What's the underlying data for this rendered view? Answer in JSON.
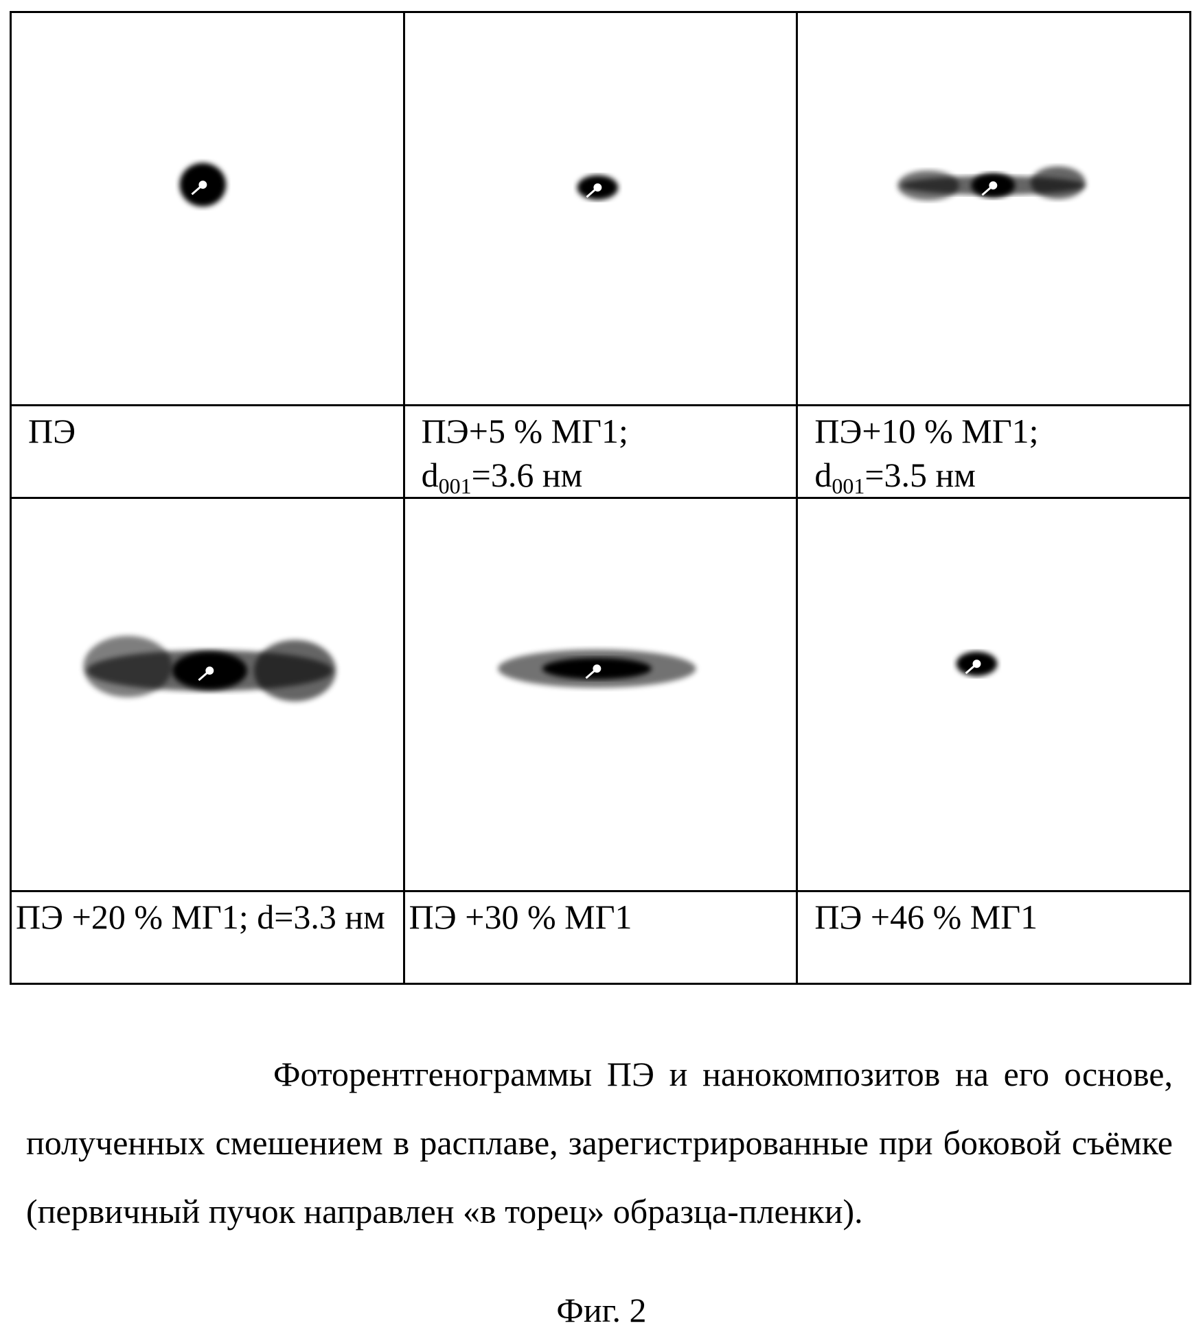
{
  "panels": [
    {
      "label": "ПЭ",
      "d_label": "",
      "d_value": "",
      "pattern": "small-round"
    },
    {
      "label": "ПЭ+5 % МГ1;",
      "d_label": "d",
      "d_sub": "001",
      "d_value": "=3.6 нм",
      "pattern": "small-oval"
    },
    {
      "label": "ПЭ+10 % МГ1;",
      "d_label": "d",
      "d_sub": "001",
      "d_value": "=3.5 нм",
      "pattern": "streak-with-lobes"
    },
    {
      "label": "ПЭ +20 % МГ1; d=3.3 нм",
      "pattern": "wide-streak-with-lobes"
    },
    {
      "label": "ПЭ +30 % МГ1",
      "pattern": "streak"
    },
    {
      "label": "ПЭ +46 % МГ1",
      "pattern": "small-oval"
    }
  ],
  "caption": "Фоторентгенограммы ПЭ и нанокомпозитов на его основе, полученных смешением в расплаве, зарегистрированные при боковой съёмке (первичный пучок направлен «в торец» образца-пленки).",
  "figure_label": "Фиг. 2"
}
